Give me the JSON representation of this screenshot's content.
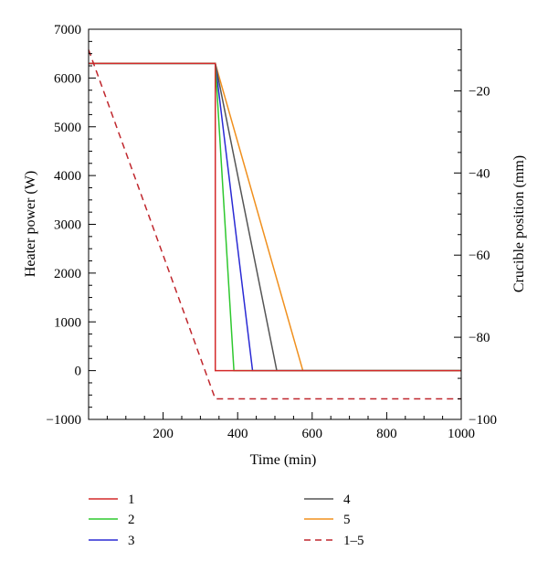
{
  "chart_data": {
    "type": "line",
    "xlabel": "Time (min)",
    "ylabel_left": "Heater power (W)",
    "ylabel_right": "Crucible position (mm)",
    "xlim": [
      0,
      1000
    ],
    "ylim_left": [
      -1000,
      7000
    ],
    "ylim_right": [
      -100,
      -5
    ],
    "x_ticks": [
      200,
      400,
      600,
      800,
      1000
    ],
    "x_tick_labels": [
      "200",
      "400",
      "600",
      "800",
      "1000"
    ],
    "y_left_ticks": [
      -1000,
      0,
      1000,
      2000,
      3000,
      4000,
      5000,
      6000,
      7000
    ],
    "y_left_tick_labels": [
      "−1000",
      "0",
      "1000",
      "2000",
      "3000",
      "4000",
      "5000",
      "6000",
      "7000"
    ],
    "y_right_ticks": [
      -100,
      -80,
      -60,
      -40,
      -20
    ],
    "y_right_tick_labels": [
      "−100",
      "−80",
      "−60",
      "−40",
      "−20"
    ],
    "grid": false,
    "legend_placement": "bottom",
    "series": [
      {
        "name": "1",
        "axis": "left",
        "style": "solid",
        "color": "#d42a2a",
        "x": [
          0,
          340,
          340,
          1000
        ],
        "y": [
          6300,
          6300,
          0,
          0
        ]
      },
      {
        "name": "2",
        "axis": "left",
        "style": "solid",
        "color": "#2ec82e",
        "x": [
          0,
          340,
          390,
          1000
        ],
        "y": [
          6300,
          6300,
          0,
          0
        ]
      },
      {
        "name": "3",
        "axis": "left",
        "style": "solid",
        "color": "#2a2ad4",
        "x": [
          0,
          340,
          440,
          1000
        ],
        "y": [
          6300,
          6300,
          0,
          0
        ]
      },
      {
        "name": "4",
        "axis": "left",
        "style": "solid",
        "color": "#555555",
        "x": [
          0,
          340,
          505,
          1000
        ],
        "y": [
          6300,
          6300,
          0,
          0
        ]
      },
      {
        "name": "5",
        "axis": "left",
        "style": "solid",
        "color": "#f0901e",
        "x": [
          0,
          340,
          575,
          1000
        ],
        "y": [
          6300,
          6300,
          0,
          0
        ]
      },
      {
        "name": "1–5",
        "axis": "right",
        "style": "dashed",
        "color": "#c0272d",
        "x": [
          0,
          340,
          1000
        ],
        "y": [
          -10,
          -95,
          -95
        ]
      }
    ]
  }
}
